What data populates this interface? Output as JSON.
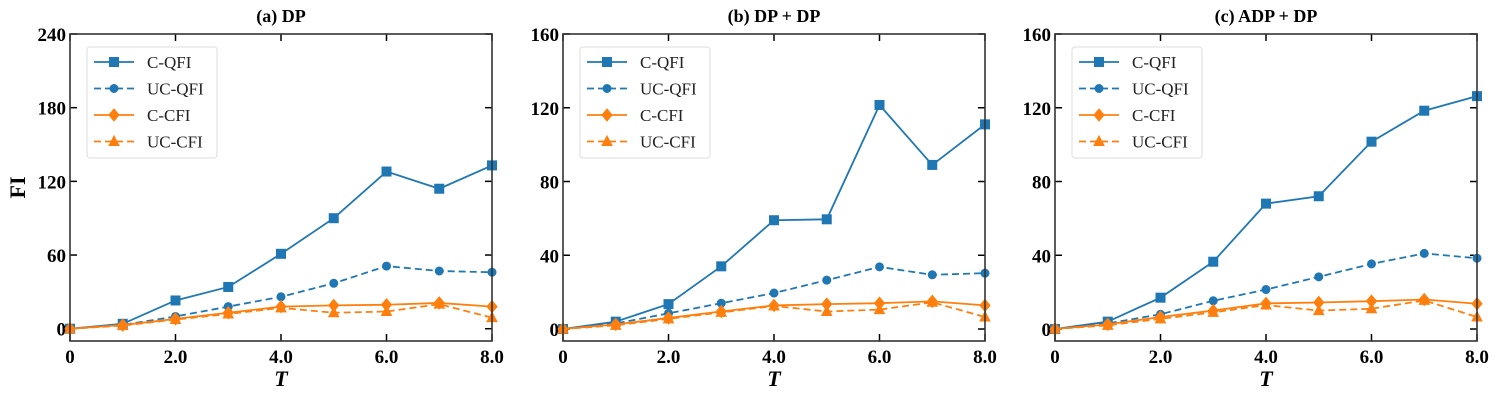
{
  "colors": {
    "blue": "#1f77b4",
    "orange": "#ff7f0e"
  },
  "chart_data": [
    {
      "type": "line",
      "title": "(a) DP",
      "xlabel": "T",
      "ylabel": "FI",
      "xlim": [
        0,
        8
      ],
      "ylim": [
        -10,
        240
      ],
      "xticks": [
        0,
        2,
        4,
        6,
        8
      ],
      "xtick_labels": [
        "0",
        "2.0",
        "4.0",
        "6.0",
        "8.0"
      ],
      "yticks": [
        0,
        60,
        120,
        180,
        240
      ],
      "ytick_labels": [
        "0",
        "60",
        "120",
        "180",
        "240"
      ],
      "legend_position": "top-left",
      "x": [
        0,
        1,
        2,
        3,
        4,
        5,
        6,
        7,
        8
      ],
      "series": [
        {
          "name": "C-QFI",
          "color": "#1f77b4",
          "dash": "solid",
          "marker": "square",
          "values": [
            0,
            4,
            23,
            34,
            61,
            90,
            128,
            114,
            133
          ]
        },
        {
          "name": "UC-QFI",
          "color": "#1f77b4",
          "dash": "dashed",
          "marker": "circle",
          "values": [
            0,
            3,
            10,
            18,
            26,
            37,
            51,
            47,
            46
          ]
        },
        {
          "name": "C-CFI",
          "color": "#ff7f0e",
          "dash": "solid",
          "marker": "diamond",
          "values": [
            0,
            3,
            8,
            13,
            18,
            19,
            19.5,
            21,
            18
          ]
        },
        {
          "name": "UC-CFI",
          "color": "#ff7f0e",
          "dash": "dashed",
          "marker": "triangle",
          "values": [
            0,
            2.5,
            7.5,
            12,
            17,
            13,
            14,
            20,
            9
          ]
        }
      ]
    },
    {
      "type": "line",
      "title": "(b) DP + DP",
      "xlabel": "T",
      "ylabel": "",
      "xlim": [
        0,
        8
      ],
      "ylim": [
        -6.5,
        160
      ],
      "xticks": [
        0,
        2,
        4,
        6,
        8
      ],
      "xtick_labels": [
        "0",
        "2.0",
        "4.0",
        "6.0",
        "8.0"
      ],
      "yticks": [
        0,
        40,
        80,
        120,
        160
      ],
      "ytick_labels": [
        "0",
        "40",
        "80",
        "120",
        "160"
      ],
      "legend_position": "top-left",
      "x": [
        0,
        1,
        2,
        3,
        4,
        5,
        6,
        7,
        8
      ],
      "series": [
        {
          "name": "C-QFI",
          "color": "#1f77b4",
          "dash": "solid",
          "marker": "square",
          "values": [
            0,
            4,
            13.5,
            34,
            59,
            59.5,
            121.5,
            89,
            111
          ]
        },
        {
          "name": "UC-QFI",
          "color": "#1f77b4",
          "dash": "dashed",
          "marker": "circle",
          "values": [
            0,
            3,
            8.5,
            14,
            19.5,
            26.5,
            33.7,
            29.4,
            30.3
          ]
        },
        {
          "name": "C-CFI",
          "color": "#ff7f0e",
          "dash": "solid",
          "marker": "diamond",
          "values": [
            0,
            2.5,
            6,
            9.5,
            12.8,
            13.5,
            14,
            15,
            12.8
          ]
        },
        {
          "name": "UC-CFI",
          "color": "#ff7f0e",
          "dash": "dashed",
          "marker": "triangle",
          "values": [
            0,
            2,
            5.5,
            9,
            12.5,
            9.5,
            10.5,
            14.5,
            6.5
          ]
        }
      ]
    },
    {
      "type": "line",
      "title": "(c) ADP + DP",
      "xlabel": "T",
      "ylabel": "",
      "xlim": [
        0,
        8
      ],
      "ylim": [
        -6.5,
        160
      ],
      "xticks": [
        0,
        2,
        4,
        6,
        8
      ],
      "xtick_labels": [
        "0",
        "2.0",
        "4.0",
        "6.0",
        "8.0"
      ],
      "yticks": [
        0,
        40,
        80,
        120,
        160
      ],
      "ytick_labels": [
        "0",
        "40",
        "80",
        "120",
        "160"
      ],
      "legend_position": "top-left",
      "x": [
        0,
        1,
        2,
        3,
        4,
        5,
        6,
        7,
        8
      ],
      "series": [
        {
          "name": "C-QFI",
          "color": "#1f77b4",
          "dash": "solid",
          "marker": "square",
          "values": [
            0,
            4,
            17,
            36.5,
            68,
            72,
            101.6,
            118.4,
            126.3
          ]
        },
        {
          "name": "UC-QFI",
          "color": "#1f77b4",
          "dash": "dashed",
          "marker": "circle",
          "values": [
            0,
            3,
            8,
            15.3,
            21.4,
            28.3,
            35.3,
            41,
            38.4
          ]
        },
        {
          "name": "C-CFI",
          "color": "#ff7f0e",
          "dash": "solid",
          "marker": "diamond",
          "values": [
            0,
            2.5,
            6.5,
            10,
            13.9,
            14.4,
            15.1,
            16,
            13.7
          ]
        },
        {
          "name": "UC-CFI",
          "color": "#ff7f0e",
          "dash": "dashed",
          "marker": "triangle",
          "values": [
            0,
            2,
            5.5,
            9,
            13,
            10,
            11,
            15.5,
            6.5
          ]
        }
      ]
    }
  ]
}
